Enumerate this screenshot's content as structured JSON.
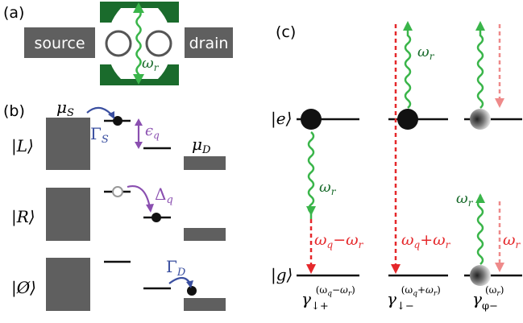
{
  "panels": {
    "a": "(a)",
    "b": "(b)",
    "c": "(c)"
  },
  "panel_a": {
    "source": "source",
    "drain": "drain",
    "photon": "ω",
    "photon_sub": "r"
  },
  "panel_b": {
    "mu_s": "μ",
    "mu_s_sub": "S",
    "mu_d": "μ",
    "mu_d_sub": "D",
    "states": [
      "|L⟩",
      "|R⟩",
      "|Ø⟩"
    ],
    "gamma_s": "Γ",
    "gamma_s_sub": "S",
    "gamma_d": "Γ",
    "gamma_d_sub": "D",
    "epsilon": "ϵ",
    "epsilon_sub": "q",
    "delta": "Δ",
    "delta_sub": "q"
  },
  "panel_c": {
    "state_e": "|e⟩",
    "state_g": "|g⟩",
    "omega": "ω",
    "omega_sub": "r",
    "minus_label": {
      "a": "ω",
      "a_sub": "q",
      "op": "−",
      "b": "ω",
      "b_sub": "r"
    },
    "plus_label": {
      "a": "ω",
      "a_sub": "q",
      "op": "+",
      "b": "ω",
      "b_sub": "r"
    },
    "rate_down_plus": {
      "base": "γ",
      "sub": "↓+",
      "sup": "(ω",
      "sup_q": "q",
      "sup_op": "−ω",
      "sup_r": "r",
      "sup_close": ")"
    },
    "rate_down_minus": {
      "base": "γ",
      "sub": "↓−",
      "sup": "(ω",
      "sup_q": "q",
      "sup_op": "+ω",
      "sup_r": "r",
      "sup_close": ")"
    },
    "rate_phi_minus": {
      "base": "γ",
      "sub": "φ−",
      "sup": "(ω",
      "sup_r": "r",
      "sup_close": ")"
    }
  },
  "colors": {
    "gray": "#5f5f5f",
    "dark_green": "#1a6b2c",
    "green": "#3ab54a",
    "red": "#e5282b",
    "pink": "#ee8a8a",
    "purple": "#8a4fb0",
    "blue": "#3a4fa0"
  }
}
